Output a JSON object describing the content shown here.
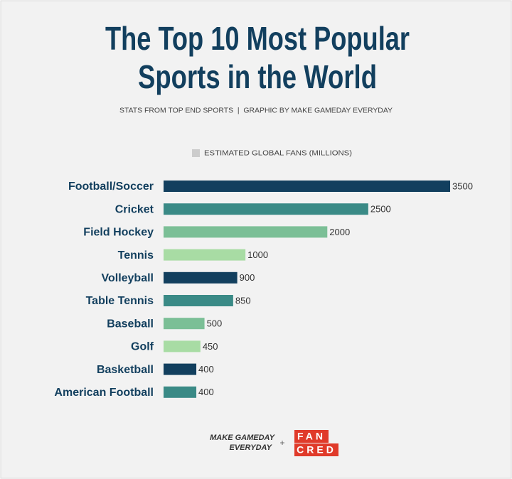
{
  "chart_data": {
    "type": "barh",
    "title": [
      "The Top 10 Most Popular",
      "Sports in the World"
    ],
    "subtitle": "STATS FROM TOP END SPORTS  |  GRAPHIC BY MAKE GAMEDAY EVERYDAY",
    "categories": [
      "Football/Soccer",
      "Cricket",
      "Field Hockey",
      "Tennis",
      "Volleyball",
      "Table Tennis",
      "Baseball",
      "Golf",
      "Basketball",
      "American Football"
    ],
    "series": [
      {
        "name": "ESTIMATED GLOBAL FANS (MILLIONS)",
        "color": "#cccccc",
        "values": [
          3500,
          2500,
          2000,
          1000,
          900,
          850,
          500,
          450,
          400,
          400
        ]
      }
    ],
    "colors": [
      "#123f5e",
      "#3a8a86",
      "#7bbf96",
      "#a8dca4",
      "#123f5e",
      "#3a8a86",
      "#7bbf96",
      "#a8dca4",
      "#123f5e",
      "#3a8a86"
    ]
  },
  "footer": {
    "brand": [
      "MAKE GAMEDAY",
      "EVERYDAY"
    ],
    "plus": "+",
    "logo": [
      "FAN",
      "CRED"
    ]
  }
}
